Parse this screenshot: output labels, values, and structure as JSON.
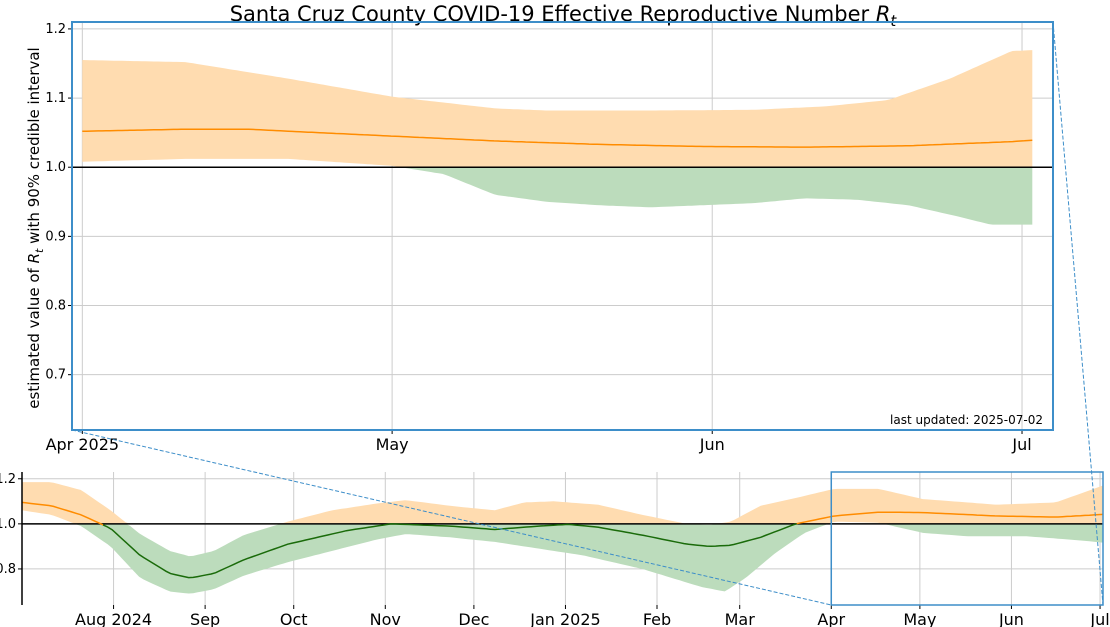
{
  "chart_data": [
    {
      "type": "line",
      "panel": "main",
      "title_prefix": "Santa Cruz County COVID-19 Effective Reproductive Number ",
      "title_symbol": "R",
      "title_sub": "t",
      "ylabel_prefix": "estimated value of ",
      "ylabel_symbol": "R",
      "ylabel_sub": "t",
      "ylabel_suffix": " with 90% credible interval",
      "annotation": "last updated: 2025-07-02",
      "x_start": "2025-04-01",
      "x_end": "2025-07-02",
      "xlim": [
        "2025-03-31",
        "2025-07-04"
      ],
      "ylim": [
        0.62,
        1.21
      ],
      "x_ticks": [
        {
          "date": "2025-04-01",
          "label": "Apr 2025"
        },
        {
          "date": "2025-05-01",
          "label": "May"
        },
        {
          "date": "2025-06-01",
          "label": "Jun"
        },
        {
          "date": "2025-07-01",
          "label": "Jul"
        }
      ],
      "y_ticks": [
        0.7,
        0.8,
        0.9,
        1.0,
        1.1,
        1.2
      ],
      "reference_line": 1.0,
      "grid": true,
      "series": [
        {
          "role": "estimate",
          "median": [
            [
              0,
              1.052
            ],
            [
              10,
              1.055
            ],
            [
              16,
              1.055
            ],
            [
              20,
              1.052
            ],
            [
              30,
              1.045
            ],
            [
              40,
              1.038
            ],
            [
              50,
              1.033
            ],
            [
              60,
              1.03
            ],
            [
              70,
              1.029
            ],
            [
              80,
              1.031
            ],
            [
              90,
              1.037
            ],
            [
              93,
              1.04
            ]
          ],
          "upper": [
            [
              0,
              1.155
            ],
            [
              10,
              1.152
            ],
            [
              20,
              1.128
            ],
            [
              30,
              1.102
            ],
            [
              40,
              1.085
            ],
            [
              45,
              1.082
            ],
            [
              55,
              1.082
            ],
            [
              65,
              1.083
            ],
            [
              72,
              1.088
            ],
            [
              78,
              1.097
            ],
            [
              84,
              1.128
            ],
            [
              90,
              1.168
            ],
            [
              93,
              1.17
            ]
          ],
          "lower": [
            [
              0,
              1.008
            ],
            [
              10,
              1.012
            ],
            [
              20,
              1.012
            ],
            [
              30,
              1.002
            ],
            [
              35,
              0.99
            ],
            [
              40,
              0.96
            ],
            [
              45,
              0.95
            ],
            [
              50,
              0.945
            ],
            [
              55,
              0.942
            ],
            [
              60,
              0.945
            ],
            [
              65,
              0.948
            ],
            [
              70,
              0.955
            ],
            [
              75,
              0.953
            ],
            [
              80,
              0.945
            ],
            [
              85,
              0.928
            ],
            [
              88,
              0.917
            ],
            [
              93,
              0.917
            ]
          ]
        }
      ]
    },
    {
      "type": "line",
      "panel": "overview",
      "x_start": "2024-07-01",
      "x_end": "2025-07-02",
      "xlim": [
        "2024-07-01",
        "2025-07-02"
      ],
      "ylim": [
        0.64,
        1.23
      ],
      "x_ticks": [
        {
          "date": "2024-08-01",
          "label": "Aug 2024"
        },
        {
          "date": "2024-09-01",
          "label": "Sep"
        },
        {
          "date": "2024-10-01",
          "label": "Oct"
        },
        {
          "date": "2024-11-01",
          "label": "Nov"
        },
        {
          "date": "2024-12-01",
          "label": "Dec"
        },
        {
          "date": "2025-01-01",
          "label": "Jan 2025"
        },
        {
          "date": "2025-02-01",
          "label": "Feb"
        },
        {
          "date": "2025-03-01",
          "label": "Mar"
        },
        {
          "date": "2025-04-01",
          "label": "Apr"
        },
        {
          "date": "2025-05-01",
          "label": "May"
        },
        {
          "date": "2025-06-01",
          "label": "Jun"
        },
        {
          "date": "2025-07-01",
          "label": "Jul"
        }
      ],
      "y_ticks": [
        0.8,
        1.0,
        1.2
      ],
      "reference_line": 1.0,
      "grid": true,
      "zoom_window": [
        "2025-04-01",
        "2025-07-02"
      ],
      "series": [
        {
          "role": "estimate",
          "median": [
            [
              0,
              1.095
            ],
            [
              10,
              1.08
            ],
            [
              20,
              1.04
            ],
            [
              30,
              0.98
            ],
            [
              40,
              0.86
            ],
            [
              50,
              0.78
            ],
            [
              57,
              0.76
            ],
            [
              65,
              0.78
            ],
            [
              75,
              0.84
            ],
            [
              90,
              0.91
            ],
            [
              110,
              0.97
            ],
            [
              125,
              1.0
            ],
            [
              145,
              0.99
            ],
            [
              160,
              0.975
            ],
            [
              175,
              0.99
            ],
            [
              185,
              0.998
            ],
            [
              195,
              0.985
            ],
            [
              210,
              0.95
            ],
            [
              225,
              0.91
            ],
            [
              233,
              0.9
            ],
            [
              240,
              0.905
            ],
            [
              250,
              0.94
            ],
            [
              262,
              1.0
            ],
            [
              275,
              1.035
            ],
            [
              290,
              1.052
            ],
            [
              305,
              1.05
            ],
            [
              330,
              1.035
            ],
            [
              350,
              1.03
            ],
            [
              366,
              1.042
            ]
          ],
          "upper": [
            [
              0,
              1.185
            ],
            [
              10,
              1.185
            ],
            [
              20,
              1.15
            ],
            [
              30,
              1.06
            ],
            [
              40,
              0.955
            ],
            [
              50,
              0.88
            ],
            [
              57,
              0.855
            ],
            [
              65,
              0.88
            ],
            [
              75,
              0.95
            ],
            [
              90,
              1.01
            ],
            [
              105,
              1.06
            ],
            [
              120,
              1.09
            ],
            [
              130,
              1.105
            ],
            [
              145,
              1.08
            ],
            [
              160,
              1.06
            ],
            [
              170,
              1.095
            ],
            [
              180,
              1.1
            ],
            [
              195,
              1.085
            ],
            [
              210,
              1.04
            ],
            [
              225,
              1.0
            ],
            [
              233,
              0.995
            ],
            [
              240,
              1.01
            ],
            [
              250,
              1.08
            ],
            [
              262,
              1.115
            ],
            [
              275,
              1.155
            ],
            [
              290,
              1.155
            ],
            [
              305,
              1.11
            ],
            [
              330,
              1.085
            ],
            [
              350,
              1.095
            ],
            [
              366,
              1.17
            ]
          ],
          "lower": [
            [
              0,
              1.06
            ],
            [
              10,
              1.04
            ],
            [
              20,
              0.99
            ],
            [
              30,
              0.9
            ],
            [
              40,
              0.76
            ],
            [
              50,
              0.7
            ],
            [
              57,
              0.69
            ],
            [
              65,
              0.71
            ],
            [
              75,
              0.77
            ],
            [
              90,
              0.83
            ],
            [
              105,
              0.88
            ],
            [
              120,
              0.93
            ],
            [
              130,
              0.955
            ],
            [
              145,
              0.94
            ],
            [
              160,
              0.92
            ],
            [
              170,
              0.9
            ],
            [
              180,
              0.88
            ],
            [
              190,
              0.86
            ],
            [
              200,
              0.83
            ],
            [
              210,
              0.8
            ],
            [
              220,
              0.76
            ],
            [
              230,
              0.72
            ],
            [
              238,
              0.7
            ],
            [
              245,
              0.76
            ],
            [
              255,
              0.87
            ],
            [
              265,
              0.96
            ],
            [
              275,
              1.01
            ],
            [
              290,
              1.005
            ],
            [
              305,
              0.96
            ],
            [
              320,
              0.945
            ],
            [
              340,
              0.945
            ],
            [
              355,
              0.93
            ],
            [
              366,
              0.917
            ]
          ]
        }
      ]
    }
  ],
  "colors": {
    "median_above": "#ff8c00",
    "median_below": "#1a6b0a",
    "band_above": "#ffdcb0",
    "band_below": "#bcdcbc",
    "axis_box": "#3d8ec9",
    "reference_line": "#000000",
    "annotation": "#9a9a9a"
  }
}
